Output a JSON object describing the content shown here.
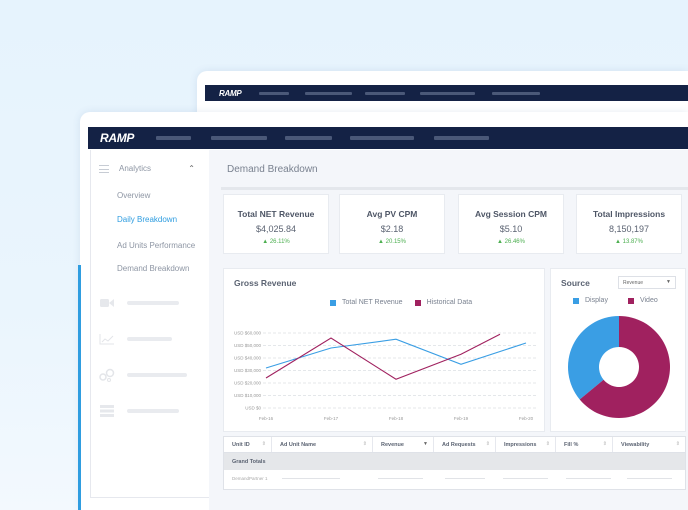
{
  "app": {
    "logo": "RAMP"
  },
  "sidebar": {
    "section": "Analytics",
    "items": [
      {
        "label": "Overview"
      },
      {
        "label": "Daily Breakdown",
        "active": true
      },
      {
        "label": "Ad Units Performance"
      },
      {
        "label": "Demand Breakdown"
      }
    ],
    "icons": [
      "video-icon",
      "line-chart-icon",
      "gears-icon",
      "server-icon"
    ]
  },
  "main": {
    "title": "Demand Breakdown",
    "kpis": [
      {
        "title": "Total NET Revenue",
        "value": "$4,025.84",
        "delta": "26.11%"
      },
      {
        "title": "Avg PV CPM",
        "value": "$2.18",
        "delta": "20.15%"
      },
      {
        "title": "Avg Session CPM",
        "value": "$5.10",
        "delta": "26.46%"
      },
      {
        "title": "Total Impressions",
        "value": "8,150,197",
        "delta": "13.87%"
      }
    ],
    "gross_title": "Gross Revenue",
    "source": {
      "title": "Source",
      "select": "Revenue"
    },
    "table": {
      "columns": [
        "Unit ID",
        "Ad Unit Name",
        "Revenue",
        "Ad Requests",
        "Impressions",
        "Fill %",
        "Viewability"
      ],
      "grand_totals": "Grand Totals",
      "rows": [
        {
          "unit": "DemandPartner 1"
        }
      ]
    }
  },
  "colors": {
    "accent": "#2f9de0",
    "secondary": "#a0215f",
    "navbar": "#142245",
    "positive": "#4caf50"
  },
  "chart_data": [
    {
      "type": "line",
      "title": "Gross Revenue",
      "categories": [
        "Feb-16",
        "Feb-17",
        "Feb-18",
        "Feb-19",
        "Feb-20"
      ],
      "yticks": [
        "USD $0",
        "USD $10,000",
        "USD $20,000",
        "USD $30,000",
        "USD $40,000",
        "USD $50,000",
        "USD $60,000"
      ],
      "ylim": [
        0,
        60000
      ],
      "grid": true,
      "legend_position": "top",
      "series": [
        {
          "name": "Total NET Revenue",
          "color": "#3a9ee4",
          "values": [
            32000,
            48000,
            55000,
            35000,
            52000
          ]
        },
        {
          "name": "Historical Data",
          "color": "#a0215f",
          "values": [
            24000,
            56000,
            23000,
            43000,
            59000
          ]
        }
      ]
    },
    {
      "type": "pie",
      "title": "Source",
      "donut": true,
      "legend_position": "top",
      "slices": [
        {
          "name": "Display",
          "value": 36,
          "color": "#3a9ee4"
        },
        {
          "name": "Video",
          "value": 64,
          "color": "#a0215f"
        }
      ]
    }
  ]
}
